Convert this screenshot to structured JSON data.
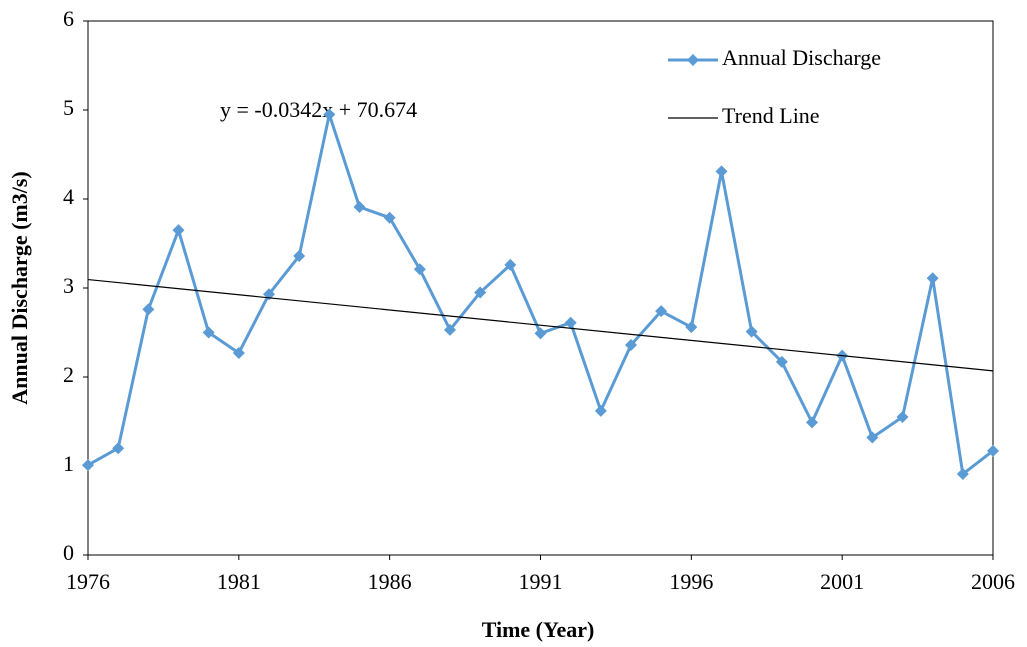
{
  "chart_data": {
    "type": "line",
    "xlabel": "Time (Year)",
    "ylabel": "Annual Discharge (m3/s)",
    "annotation": "y = -0.0342x + 70.674",
    "x": [
      1976,
      1977,
      1978,
      1979,
      1980,
      1981,
      1982,
      1983,
      1984,
      1985,
      1986,
      1987,
      1988,
      1989,
      1990,
      1991,
      1992,
      1993,
      1994,
      1995,
      1996,
      1997,
      1998,
      1999,
      2000,
      2001,
      2002,
      2003,
      2004,
      2005,
      2006
    ],
    "series": [
      {
        "name": "Annual Discharge",
        "color": "#5b9bd5",
        "marker": "diamond",
        "values": [
          1.01,
          1.2,
          2.76,
          3.65,
          2.5,
          2.27,
          2.93,
          3.36,
          4.95,
          3.91,
          3.79,
          3.21,
          2.53,
          2.95,
          3.26,
          2.49,
          2.61,
          1.62,
          2.36,
          2.74,
          2.56,
          4.31,
          2.51,
          2.17,
          1.49,
          2.24,
          1.32,
          1.55,
          3.11,
          0.91,
          1.17
        ]
      },
      {
        "name": "Trend Line",
        "color": "#000000",
        "x": [
          1976,
          2006
        ],
        "values": [
          3.095,
          2.069
        ]
      }
    ],
    "xlim": [
      1976,
      2006
    ],
    "xticks": [
      1976,
      1981,
      1986,
      1991,
      1996,
      2001,
      2006
    ],
    "ylim": [
      0,
      6
    ],
    "yticks": [
      0,
      1,
      2,
      3,
      4,
      5,
      6
    ],
    "grid": false,
    "legend": "upper right"
  }
}
